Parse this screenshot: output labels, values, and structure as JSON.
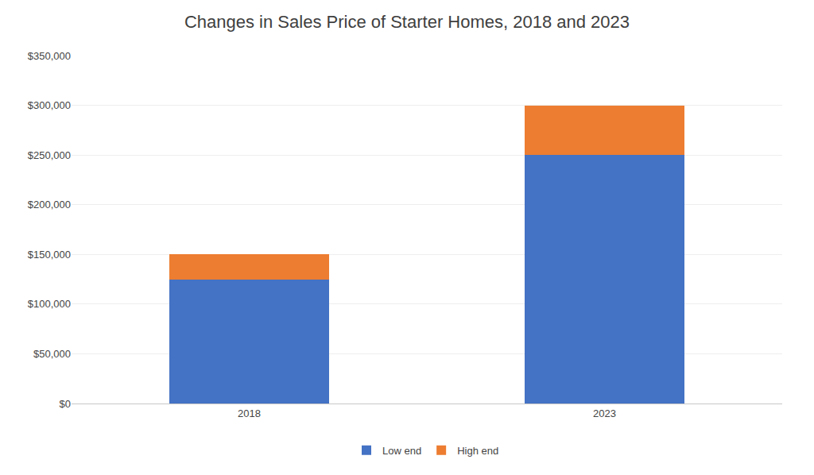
{
  "chart_data": {
    "type": "bar",
    "title": "Changes in Sales Price of Starter Homes, 2018 and 2023",
    "categories": [
      "2018",
      "2023"
    ],
    "series": [
      {
        "name": "Low end",
        "color": "#4472C4",
        "values": [
          125000,
          250000
        ]
      },
      {
        "name": "High end",
        "color": "#ED7D31",
        "values": [
          25000,
          50000
        ]
      }
    ],
    "stacked": true,
    "ylim": [
      0,
      350000
    ],
    "yticks": [
      {
        "value": 0,
        "label": "$0"
      },
      {
        "value": 50000,
        "label": "$50,000"
      },
      {
        "value": 100000,
        "label": "$100,000"
      },
      {
        "value": 150000,
        "label": "$150,000"
      },
      {
        "value": 200000,
        "label": "$200,000"
      },
      {
        "value": 250000,
        "label": "$250,000"
      },
      {
        "value": 300000,
        "label": "$300,000"
      },
      {
        "value": 350000,
        "label": "$350,000"
      }
    ],
    "grid": true,
    "legend": "bottom"
  }
}
